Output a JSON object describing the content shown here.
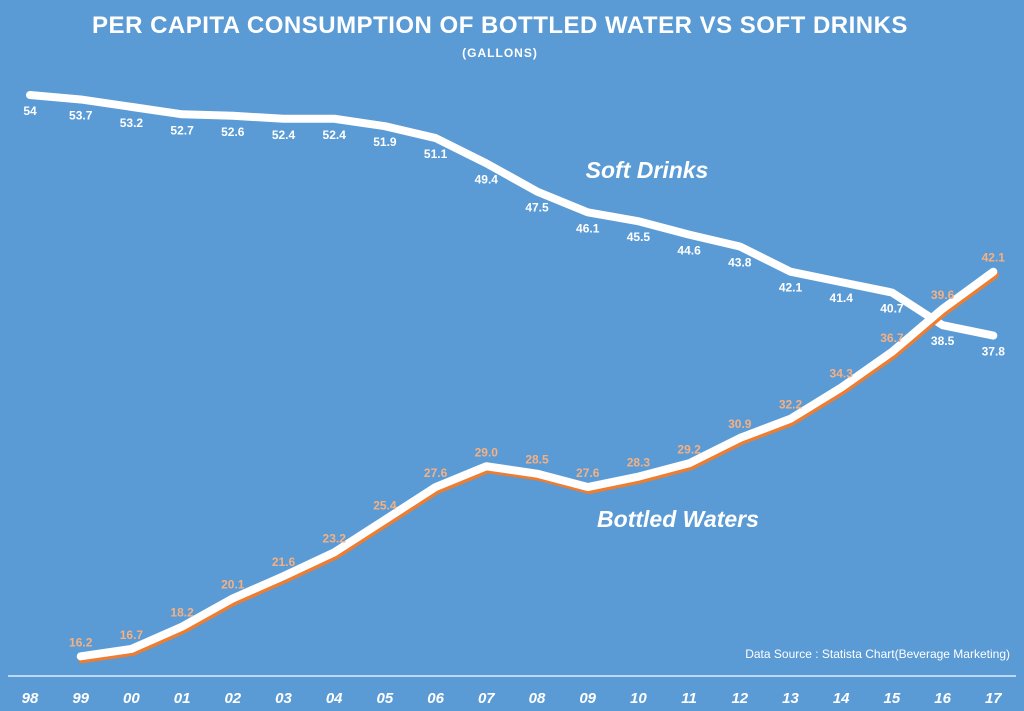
{
  "chart_data": {
    "type": "line",
    "title": "PER CAPITA CONSUMPTION OF BOTTLED WATER VS SOFT DRINKS",
    "subtitle": "(GALLONS)",
    "categories": [
      "98",
      "99",
      "00",
      "01",
      "02",
      "03",
      "04",
      "05",
      "06",
      "07",
      "08",
      "09",
      "10",
      "11",
      "12",
      "13",
      "14",
      "15",
      "16",
      "17"
    ],
    "series": [
      {
        "name": "Soft Drinks",
        "color": "#ffffff",
        "label_color": "#ffffff",
        "values": [
          54,
          53.7,
          53.2,
          52.7,
          52.6,
          52.4,
          52.4,
          51.9,
          51.1,
          49.4,
          47.5,
          46.1,
          45.5,
          44.6,
          43.8,
          42.1,
          41.4,
          40.7,
          38.5,
          37.8
        ],
        "labels": [
          "54",
          "53.7",
          "53.2",
          "52.7",
          "52.6",
          "52.4",
          "52.4",
          "51.9",
          "51.1",
          "49.4",
          "47.5",
          "46.1",
          "45.5",
          "44.6",
          "43.8",
          "42.1",
          "41.4",
          "40.7",
          "38.5",
          "37.8"
        ]
      },
      {
        "name": "Bottled Waters",
        "color": "#ffffff",
        "shadow_color": "#ed7d31",
        "label_color": "#f4b183",
        "values": [
          null,
          16.2,
          16.7,
          18.2,
          20.1,
          21.6,
          23.2,
          25.4,
          27.6,
          29.0,
          28.5,
          27.6,
          28.3,
          29.2,
          30.9,
          32.2,
          34.3,
          36.7,
          39.6,
          42.1
        ],
        "labels": [
          null,
          "16.2",
          "16.7",
          "18.2",
          "20.1",
          "21.6",
          "23.2",
          "25.4",
          "27.6",
          "29.0",
          "28.5",
          "27.6",
          "28.3",
          "29.2",
          "30.9",
          "32.2",
          "34.3",
          "36.7",
          "39.6",
          "42.1"
        ]
      }
    ],
    "annotation": "Data Source :  Statista  Chart(Beverage Marketing)",
    "grid": false,
    "legend": "inline labels"
  },
  "colors": {
    "background": "#5b9bd5"
  }
}
